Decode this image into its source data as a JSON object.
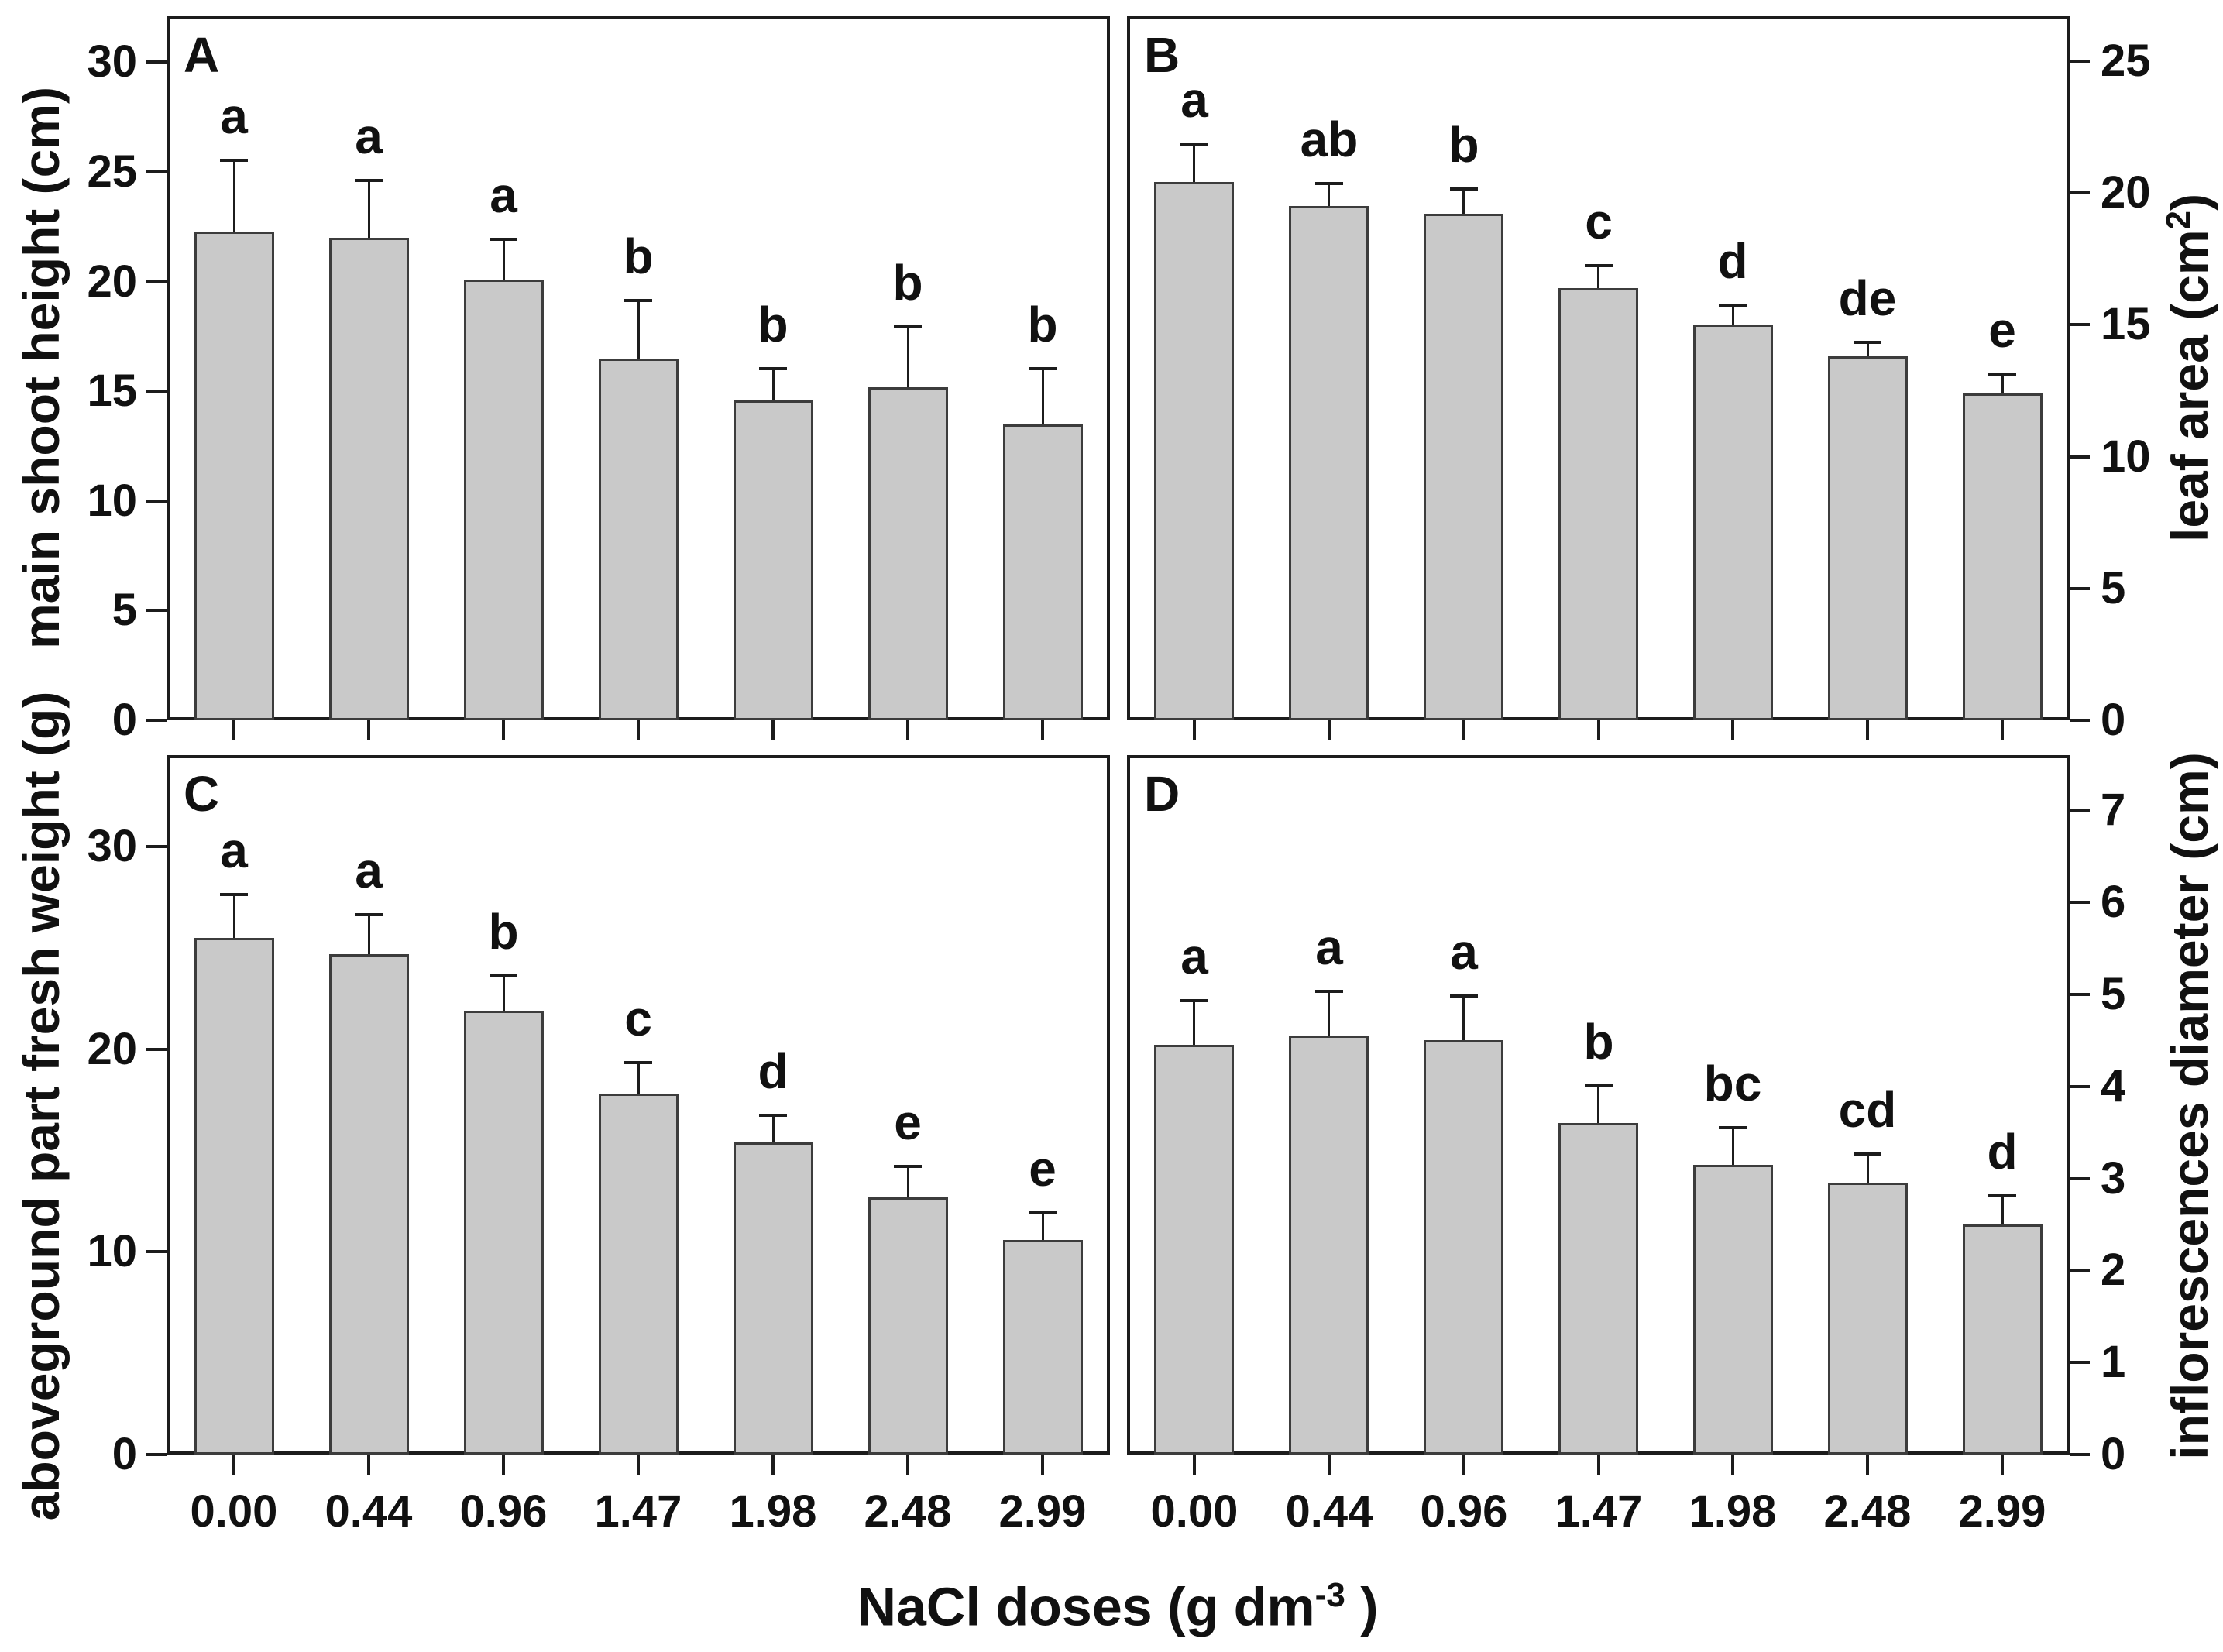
{
  "chart_data": {
    "type": "bar",
    "layout": "2x2 panels, shared x axis",
    "grid": "off",
    "bar_fill_color": "#c9c9c9",
    "bar_border_color": "#3c3c3c",
    "frame_color": "#1c1c1c",
    "categories": [
      "0.00",
      "0.44",
      "0.96",
      "1.47",
      "1.98",
      "2.48",
      "2.99"
    ],
    "xlabel": {
      "prefix": "NaCl doses (g dm",
      "sup": "-3",
      "suffix": " )"
    },
    "panels": [
      {
        "label": "A",
        "axis_side": "left",
        "ylabel": {
          "prefix": "main shoot height (cm)",
          "sup": "",
          "suffix": ""
        },
        "yticks": [
          0,
          5,
          10,
          15,
          20,
          25,
          30
        ],
        "ymax": 32.1,
        "values": [
          22.3,
          22.0,
          20.1,
          16.5,
          14.6,
          15.2,
          13.5
        ],
        "errors_up": [
          3.3,
          2.7,
          1.9,
          2.7,
          1.5,
          2.8,
          2.6
        ],
        "sig_letters": [
          "a",
          "a",
          "a",
          "b",
          "b",
          "b",
          "b"
        ]
      },
      {
        "label": "B",
        "axis_side": "right",
        "ylabel": {
          "prefix": "leaf area (cm",
          "sup": "2",
          "suffix": ")"
        },
        "yticks": [
          0,
          5,
          10,
          15,
          20,
          25
        ],
        "ymax": 26.7,
        "values": [
          20.4,
          19.5,
          19.2,
          16.4,
          15.0,
          13.8,
          12.4
        ],
        "errors_up": [
          1.5,
          0.9,
          1.0,
          0.9,
          0.8,
          0.6,
          0.8
        ],
        "sig_letters": [
          "a",
          "ab",
          "b",
          "c",
          "d",
          "de",
          "e"
        ]
      },
      {
        "label": "C",
        "axis_side": "left",
        "ylabel": {
          "prefix": "aboveground part fresh weight (g)",
          "sup": "",
          "suffix": ""
        },
        "yticks": [
          0,
          10,
          20,
          30
        ],
        "ymax": 34.5,
        "values": [
          25.5,
          24.7,
          21.9,
          17.8,
          15.4,
          12.7,
          10.6
        ],
        "errors_up": [
          2.2,
          2.0,
          1.8,
          1.6,
          1.4,
          1.6,
          1.4
        ],
        "sig_letters": [
          "a",
          "a",
          "b",
          "c",
          "d",
          "e",
          "e"
        ]
      },
      {
        "label": "D",
        "axis_side": "right",
        "ylabel": {
          "prefix": "inflorescences diameter (cm)",
          "sup": "",
          "suffix": ""
        },
        "yticks": [
          0,
          1,
          2,
          3,
          4,
          5,
          6,
          7
        ],
        "ymax": 7.6,
        "values": [
          4.45,
          4.55,
          4.5,
          3.6,
          3.15,
          2.95,
          2.5
        ],
        "errors_up": [
          0.5,
          0.5,
          0.5,
          0.42,
          0.42,
          0.33,
          0.33
        ],
        "sig_letters": [
          "a",
          "a",
          "a",
          "b",
          "bc",
          "cd",
          "d"
        ]
      }
    ]
  }
}
